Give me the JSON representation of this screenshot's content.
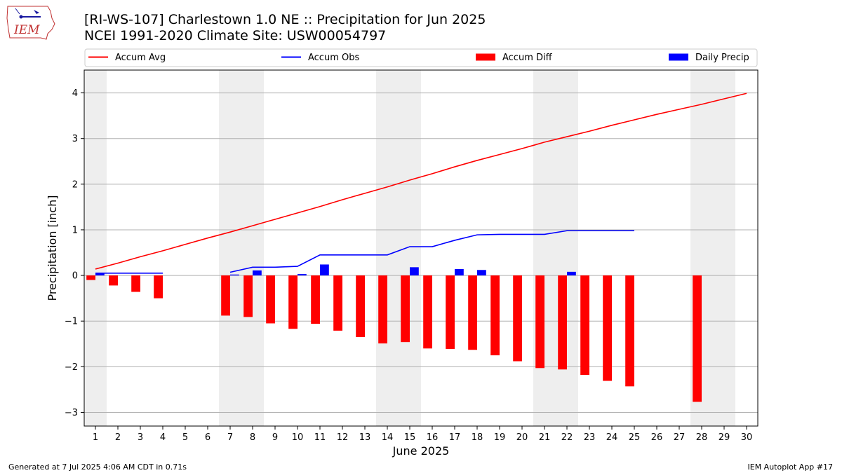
{
  "header": {
    "title": "[RI-WS-107] Charlestown 1.0 NE :: Precipitation for Jun 2025",
    "subtitle": "NCEI 1991-2020 Climate Site: USW00054797"
  },
  "logo": {
    "text": "IEM",
    "icon": "iem-iowa-logo-icon"
  },
  "footer": {
    "generated": "Generated at 7 Jul 2025 4:06 AM CDT in 0.71s",
    "app": "IEM Autoplot App #17"
  },
  "colors": {
    "avg": "#ff0000",
    "obs": "#0000ff",
    "diff": "#ff0000",
    "daily": "#0000ff",
    "weekend": "#eeeeee",
    "grid": "#b0b0b0"
  },
  "chart_data": {
    "type": "bar",
    "xlabel": "June 2025",
    "ylabel": "Precipitation [inch]",
    "ylim": [
      -3.3,
      4.5
    ],
    "xlim": [
      0.5,
      30.5
    ],
    "yticks": [
      -3,
      -2,
      -1,
      0,
      1,
      2,
      3,
      4
    ],
    "xticks": [
      1,
      2,
      3,
      4,
      5,
      6,
      7,
      8,
      9,
      10,
      11,
      12,
      13,
      14,
      15,
      16,
      17,
      18,
      19,
      20,
      21,
      22,
      23,
      24,
      25,
      26,
      27,
      28,
      29,
      30
    ],
    "grid": "horizontal",
    "legend_position": "top",
    "weekend_bands": [
      [
        0.5,
        1.5
      ],
      [
        6.5,
        8.5
      ],
      [
        13.5,
        15.5
      ],
      [
        20.5,
        22.5
      ],
      [
        27.5,
        29.5
      ]
    ],
    "legend": [
      {
        "label": "Accum Avg",
        "kind": "line",
        "color": "#ff0000"
      },
      {
        "label": "Accum Obs",
        "kind": "line",
        "color": "#0000ff"
      },
      {
        "label": "Accum Diff",
        "kind": "bar",
        "color": "#ff0000"
      },
      {
        "label": "Daily Precip",
        "kind": "bar",
        "color": "#0000ff"
      }
    ],
    "series": [
      {
        "name": "Accum Avg",
        "type": "line",
        "x": [
          1,
          2,
          3,
          4,
          5,
          6,
          7,
          8,
          9,
          10,
          11,
          12,
          13,
          14,
          15,
          16,
          17,
          18,
          19,
          20,
          21,
          22,
          23,
          24,
          25,
          26,
          27,
          28,
          29,
          30
        ],
        "values": [
          0.14,
          0.27,
          0.41,
          0.54,
          0.68,
          0.82,
          0.95,
          1.09,
          1.23,
          1.37,
          1.51,
          1.66,
          1.8,
          1.94,
          2.09,
          2.23,
          2.38,
          2.52,
          2.65,
          2.78,
          2.92,
          3.04,
          3.16,
          3.29,
          3.41,
          3.53,
          3.64,
          3.75,
          3.87,
          3.99
        ]
      },
      {
        "name": "Accum Obs",
        "type": "line",
        "segments": [
          {
            "x": [
              1,
              2,
              3,
              4
            ],
            "values": [
              0.05,
              0.05,
              0.05,
              0.05
            ]
          },
          {
            "x": [
              7,
              8,
              9,
              10,
              11,
              12,
              13,
              14,
              15,
              16,
              17,
              18,
              19,
              20,
              21,
              22,
              23,
              24,
              25
            ],
            "values": [
              0.07,
              0.18,
              0.18,
              0.2,
              0.45,
              0.45,
              0.45,
              0.45,
              0.63,
              0.63,
              0.77,
              0.89,
              0.9,
              0.9,
              0.9,
              0.98,
              0.98,
              0.98,
              0.98
            ]
          }
        ]
      },
      {
        "name": "Accum Diff",
        "type": "bar",
        "offset": -0.2,
        "x": [
          1,
          2,
          3,
          4,
          7,
          8,
          9,
          10,
          11,
          12,
          13,
          14,
          15,
          16,
          17,
          18,
          19,
          20,
          21,
          22,
          23,
          24,
          25,
          28
        ],
        "values": [
          -0.1,
          -0.22,
          -0.36,
          -0.5,
          -0.88,
          -0.91,
          -1.05,
          -1.17,
          -1.06,
          -1.21,
          -1.35,
          -1.49,
          -1.46,
          -1.6,
          -1.61,
          -1.63,
          -1.75,
          -1.88,
          -2.03,
          -2.06,
          -2.18,
          -2.31,
          -2.43,
          -2.77
        ]
      },
      {
        "name": "Daily Precip",
        "type": "bar",
        "offset": 0.2,
        "x": [
          1,
          7,
          8,
          10,
          11,
          15,
          17,
          18,
          22
        ],
        "values": [
          0.05,
          0.02,
          0.11,
          0.03,
          0.24,
          0.18,
          0.14,
          0.12,
          0.08
        ]
      }
    ]
  }
}
